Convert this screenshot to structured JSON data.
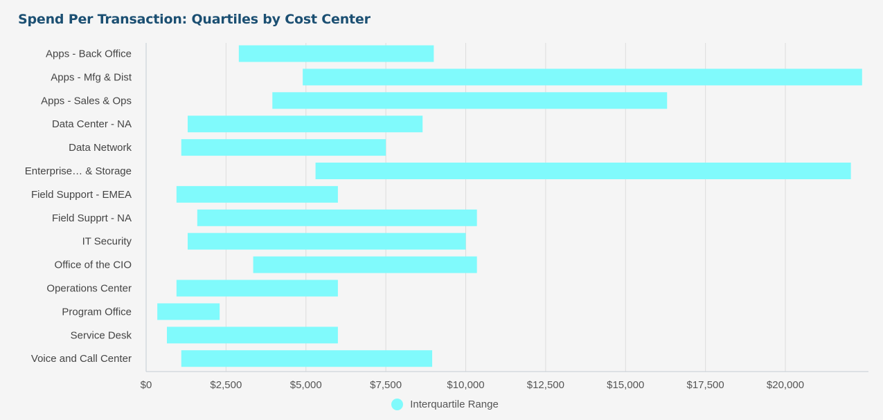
{
  "chart_data": {
    "type": "bar",
    "orientation": "horizontal",
    "title": "Spend Per Transaction: Quartiles by Cost Center",
    "categories": [
      "Apps - Back Office",
      "Apps - Mfg & Dist",
      "Apps - Sales & Ops",
      "Data Center - NA",
      "Data Network",
      "Enterprise… & Storage",
      "Field Support - EMEA",
      "Field Supprt - NA",
      "IT Security",
      "Office of the CIO",
      "Operations Center",
      "Program Office",
      "Service Desk",
      "Voice and Call Center"
    ],
    "series": [
      {
        "name": "Interquartile Range",
        "color": "#80fafc",
        "ranges": [
          [
            2900,
            9000
          ],
          [
            4900,
            22400
          ],
          [
            3950,
            16300
          ],
          [
            1300,
            8650
          ],
          [
            1100,
            7500
          ],
          [
            5300,
            22050
          ],
          [
            950,
            6000
          ],
          [
            1600,
            10350
          ],
          [
            1300,
            10000
          ],
          [
            3350,
            10350
          ],
          [
            950,
            6000
          ],
          [
            350,
            2300
          ],
          [
            650,
            6000
          ],
          [
            1100,
            8950
          ]
        ]
      }
    ],
    "x_ticks": [
      0,
      2500,
      5000,
      7500,
      10000,
      12500,
      15000,
      17500,
      20000
    ],
    "x_tick_labels": [
      "$0",
      "$2,500",
      "$5,000",
      "$7,500",
      "$10,000",
      "$12,500",
      "$15,000",
      "$17,500",
      "$20,000"
    ],
    "xlim": [
      0,
      22600
    ],
    "grid": true,
    "legend_position": "bottom-center"
  }
}
